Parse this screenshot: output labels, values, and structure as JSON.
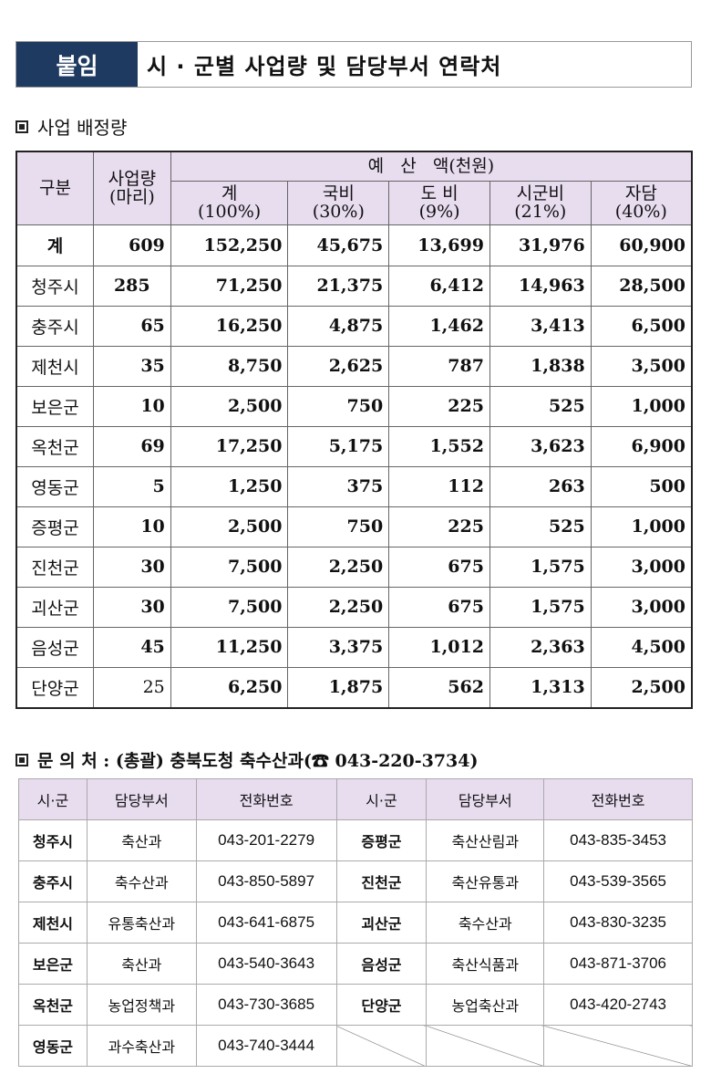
{
  "title": {
    "tag": "붙임",
    "text": "시 · 군별 사업량 및 담당부서 연락처"
  },
  "section1": {
    "heading": "사업 배정량"
  },
  "allocation": {
    "headers": {
      "division": "구분",
      "quantity": "사업량\n(마리)",
      "budget": "예   산   액(천원)",
      "cols": [
        "계\n(100%)",
        "국비\n(30%)",
        "도 비\n(9%)",
        "시군비\n(21%)",
        "자담\n(40%)"
      ]
    },
    "rows": [
      [
        "계",
        "609",
        "152,250",
        "45,675",
        "13,699",
        "31,976",
        "60,900"
      ],
      [
        "청주시",
        "285",
        "71,250",
        "21,375",
        "6,412",
        "14,963",
        "28,500"
      ],
      [
        "충주시",
        "65",
        "16,250",
        "4,875",
        "1,462",
        "3,413",
        "6,500"
      ],
      [
        "제천시",
        "35",
        "8,750",
        "2,625",
        "787",
        "1,838",
        "3,500"
      ],
      [
        "보은군",
        "10",
        "2,500",
        "750",
        "225",
        "525",
        "1,000"
      ],
      [
        "옥천군",
        "69",
        "17,250",
        "5,175",
        "1,552",
        "3,623",
        "6,900"
      ],
      [
        "영동군",
        "5",
        "1,250",
        "375",
        "112",
        "263",
        "500"
      ],
      [
        "증평군",
        "10",
        "2,500",
        "750",
        "225",
        "525",
        "1,000"
      ],
      [
        "진천군",
        "30",
        "7,500",
        "2,250",
        "675",
        "1,575",
        "3,000"
      ],
      [
        "괴산군",
        "30",
        "7,500",
        "2,250",
        "675",
        "1,575",
        "3,000"
      ],
      [
        "음성군",
        "45",
        "11,250",
        "3,375",
        "1,012",
        "2,363",
        "4,500"
      ],
      [
        "단양군",
        "25",
        "6,250",
        "1,875",
        "562",
        "1,313",
        "2,500"
      ]
    ]
  },
  "section2": {
    "heading": "문 의 처 : (총괄) 충북도청 축수산과(☎ 043-220-3734)"
  },
  "contacts": {
    "headers": [
      "시·군",
      "담당부서",
      "전화번호",
      "시·군",
      "담당부서",
      "전화번호"
    ],
    "rows": [
      [
        "청주시",
        "축산과",
        "043-201-2279",
        "증평군",
        "축산산림과",
        "043-835-3453"
      ],
      [
        "충주시",
        "축수산과",
        "043-850-5897",
        "진천군",
        "축산유통과",
        "043-539-3565"
      ],
      [
        "제천시",
        "유통축산과",
        "043-641-6875",
        "괴산군",
        "축수산과",
        "043-830-3235"
      ],
      [
        "보은군",
        "축산과",
        "043-540-3643",
        "음성군",
        "축산식품과",
        "043-871-3706"
      ],
      [
        "옥천군",
        "농업정책과",
        "043-730-3685",
        "단양군",
        "농업축산과",
        "043-420-2743"
      ],
      [
        "영동군",
        "과수축산과",
        "043-740-3444",
        "",
        "",
        ""
      ]
    ]
  }
}
